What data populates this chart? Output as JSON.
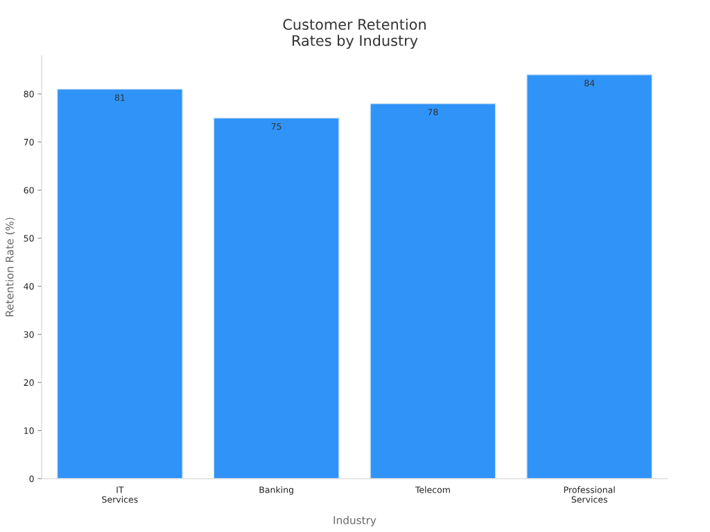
{
  "chart_data": {
    "type": "bar",
    "title": "Customer Retention\nRates by Industry",
    "xlabel": "Industry",
    "ylabel": "Retention Rate (%)",
    "categories": [
      "IT\nServices",
      "Banking",
      "Telecom",
      "Professional\nServices"
    ],
    "values": [
      81,
      75,
      78,
      84
    ],
    "color": "#2f93f8",
    "ylim": [
      0,
      88
    ],
    "yticks": [
      0,
      10,
      20,
      30,
      40,
      50,
      60,
      70,
      80
    ],
    "grid": false,
    "legend": false,
    "data_labels": true
  }
}
